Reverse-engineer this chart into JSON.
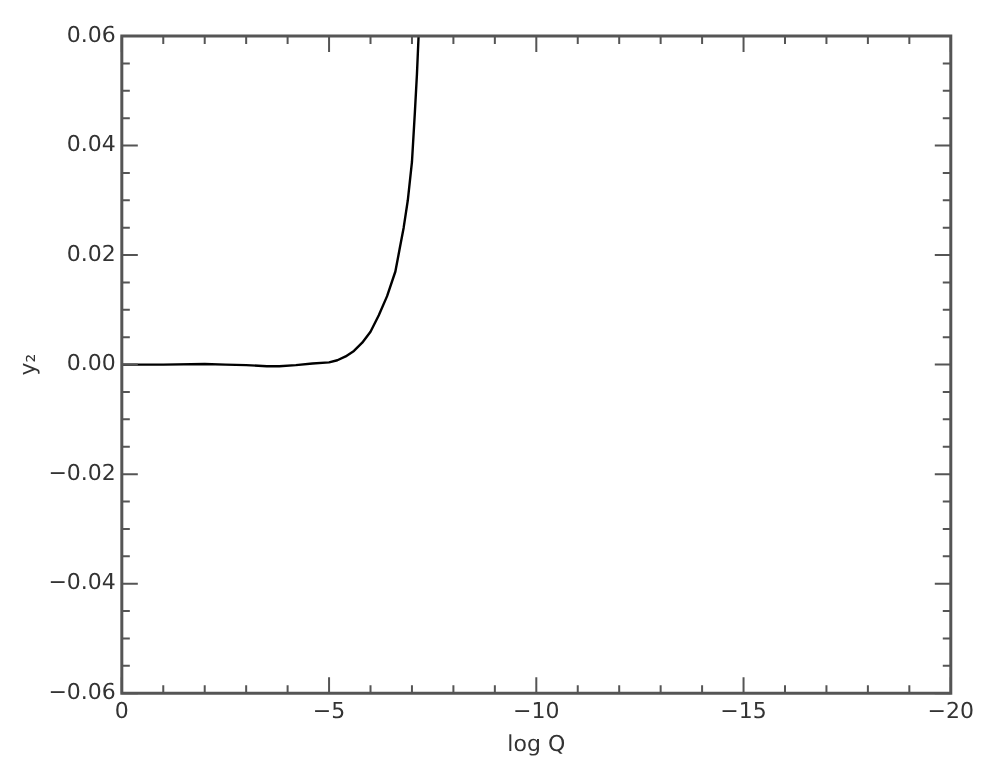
{
  "chart_data": {
    "type": "line",
    "xlabel": "log Q",
    "ylabel": "y₂",
    "series": [
      {
        "color": "#000000",
        "x": [
          0,
          -1,
          -2,
          -2.5,
          -3,
          -3.5,
          -3.8,
          -4.2,
          -4.6,
          -5.0,
          -5.2,
          -5.4,
          -5.6,
          -5.8,
          -6.0,
          -6.2,
          -6.4,
          -6.6,
          -6.7,
          -6.8,
          -6.9,
          -7.0,
          -7.07,
          -7.12,
          -7.16
        ],
        "values": [
          0,
          0,
          0.0001,
          0,
          -0.0001,
          -0.0003,
          -0.0003,
          -0.0001,
          0.0002,
          0.0004,
          0.0008,
          0.0015,
          0.0025,
          0.004,
          0.006,
          0.009,
          0.0125,
          0.017,
          0.021,
          0.025,
          0.03,
          0.037,
          0.046,
          0.053,
          0.06
        ]
      }
    ],
    "xlim": [
      0,
      -20
    ],
    "xticks": [
      {
        "value": 0,
        "label": "0"
      },
      {
        "value": -1,
        "label": null
      },
      {
        "value": -2,
        "label": null
      },
      {
        "value": -3,
        "label": null
      },
      {
        "value": -4,
        "label": null
      },
      {
        "value": -5,
        "label": "−5"
      },
      {
        "value": -6,
        "label": null
      },
      {
        "value": -7,
        "label": null
      },
      {
        "value": -8,
        "label": null
      },
      {
        "value": -9,
        "label": null
      },
      {
        "value": -10,
        "label": "−10"
      },
      {
        "value": -11,
        "label": null
      },
      {
        "value": -12,
        "label": null
      },
      {
        "value": -13,
        "label": null
      },
      {
        "value": -14,
        "label": null
      },
      {
        "value": -15,
        "label": "−15"
      },
      {
        "value": -16,
        "label": null
      },
      {
        "value": -17,
        "label": null
      },
      {
        "value": -18,
        "label": null
      },
      {
        "value": -19,
        "label": null
      },
      {
        "value": -20,
        "label": "−20"
      }
    ],
    "ylim": [
      -0.06,
      0.06
    ],
    "yticks": [
      {
        "value": -0.06,
        "label": "−0.06"
      },
      {
        "value": -0.055,
        "label": null
      },
      {
        "value": -0.05,
        "label": null
      },
      {
        "value": -0.045,
        "label": null
      },
      {
        "value": -0.04,
        "label": "−0.04"
      },
      {
        "value": -0.035,
        "label": null
      },
      {
        "value": -0.03,
        "label": null
      },
      {
        "value": -0.025,
        "label": null
      },
      {
        "value": -0.02,
        "label": "−0.02"
      },
      {
        "value": -0.015,
        "label": null
      },
      {
        "value": -0.01,
        "label": null
      },
      {
        "value": -0.005,
        "label": null
      },
      {
        "value": 0,
        "label": "0.00"
      },
      {
        "value": 0.005,
        "label": null
      },
      {
        "value": 0.01,
        "label": null
      },
      {
        "value": 0.015,
        "label": null
      },
      {
        "value": 0.02,
        "label": "0.02"
      },
      {
        "value": 0.025,
        "label": null
      },
      {
        "value": 0.03,
        "label": null
      },
      {
        "value": 0.035,
        "label": null
      },
      {
        "value": 0.04,
        "label": "0.04"
      },
      {
        "value": 0.045,
        "label": null
      },
      {
        "value": 0.05,
        "label": null
      },
      {
        "value": 0.055,
        "label": null
      },
      {
        "value": 0.06,
        "label": "0.06"
      }
    ],
    "grid": false,
    "legend": false,
    "marker": "none",
    "line_style": "solid"
  }
}
